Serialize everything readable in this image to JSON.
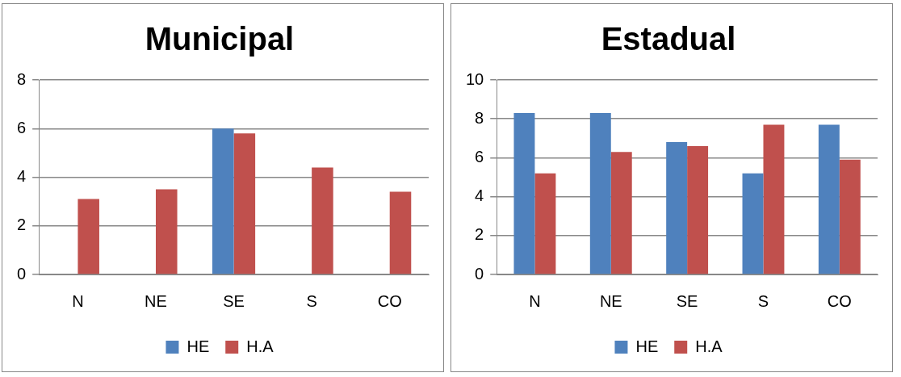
{
  "chart_data": [
    {
      "type": "bar",
      "title": "Municipal",
      "categories": [
        "N",
        "NE",
        "SE",
        "S",
        "CO"
      ],
      "series": [
        {
          "name": "HE",
          "color": "#4f81bd",
          "values": [
            0,
            0,
            6.0,
            0,
            0
          ]
        },
        {
          "name": "H.A",
          "color": "#c0504d",
          "values": [
            3.1,
            3.5,
            5.8,
            4.4,
            3.4
          ]
        }
      ],
      "ylim": [
        0,
        8
      ],
      "yticks": [
        0,
        2,
        4,
        6,
        8
      ],
      "grid": "y",
      "legend": "bottom"
    },
    {
      "type": "bar",
      "title": "Estadual",
      "categories": [
        "N",
        "NE",
        "SE",
        "S",
        "CO"
      ],
      "series": [
        {
          "name": "HE",
          "color": "#4f81bd",
          "values": [
            8.3,
            8.3,
            6.8,
            5.2,
            7.7
          ]
        },
        {
          "name": "H.A",
          "color": "#c0504d",
          "values": [
            5.2,
            6.3,
            6.6,
            7.7,
            5.9
          ]
        }
      ],
      "ylim": [
        0,
        10
      ],
      "yticks": [
        0,
        2,
        4,
        6,
        8,
        10
      ],
      "grid": "y",
      "legend": "bottom"
    }
  ]
}
